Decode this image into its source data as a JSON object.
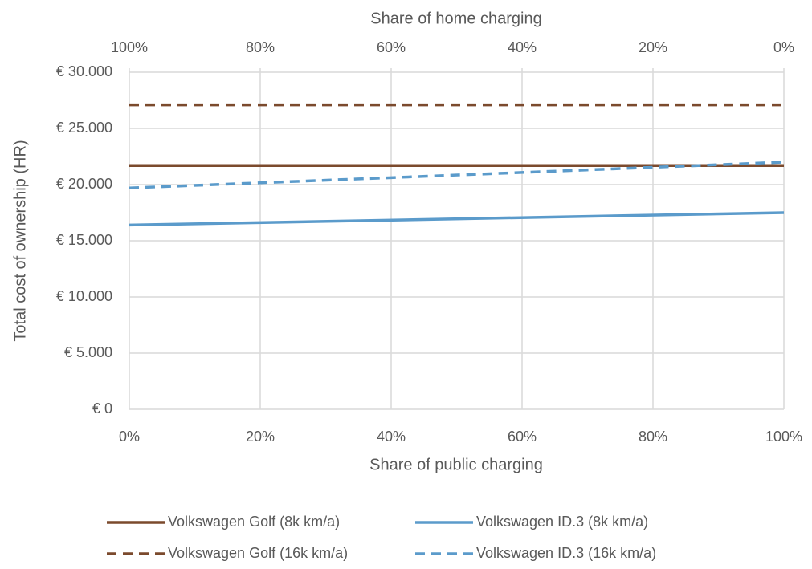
{
  "chart_data": {
    "type": "line",
    "xlabel": "Share of public charging",
    "x2label": "Share of home charging",
    "ylabel": "Total cost of ownership (HR)",
    "x": [
      0,
      100
    ],
    "xlim": [
      0,
      100
    ],
    "xticks": [
      {
        "value": 0,
        "label": "0%"
      },
      {
        "value": 20,
        "label": "20%"
      },
      {
        "value": 40,
        "label": "40%"
      },
      {
        "value": 60,
        "label": "60%"
      },
      {
        "value": 80,
        "label": "80%"
      },
      {
        "value": 100,
        "label": "100%"
      }
    ],
    "x2lim": [
      100,
      0
    ],
    "x2ticks": [
      {
        "value": 100,
        "label": "100%"
      },
      {
        "value": 80,
        "label": "80%"
      },
      {
        "value": 60,
        "label": "60%"
      },
      {
        "value": 40,
        "label": "40%"
      },
      {
        "value": 20,
        "label": "20%"
      },
      {
        "value": 0,
        "label": "0%"
      }
    ],
    "ylim": [
      0,
      30000
    ],
    "yticks": [
      {
        "value": 0,
        "label": "€ 0"
      },
      {
        "value": 5000,
        "label": "€ 5.000"
      },
      {
        "value": 10000,
        "label": "€ 10.000"
      },
      {
        "value": 15000,
        "label": "€ 15.000"
      },
      {
        "value": 20000,
        "label": "€ 20.000"
      },
      {
        "value": 25000,
        "label": "€ 25.000"
      },
      {
        "value": 30000,
        "label": "€ 30.000"
      }
    ],
    "grid": true,
    "legend": "bottom",
    "series": [
      {
        "name": "Volkswagen Golf (8k km/a)",
        "color": "#7b4a2d",
        "dashed": false,
        "values": [
          21700,
          21700
        ]
      },
      {
        "name": "Volkswagen ID.3 (8k km/a)",
        "color": "#5b9bcb",
        "dashed": false,
        "values": [
          16400,
          17500
        ]
      },
      {
        "name": "Volkswagen Golf (16k km/a)",
        "color": "#7b4a2d",
        "dashed": true,
        "values": [
          27100,
          27100
        ]
      },
      {
        "name": "Volkswagen ID.3 (16k km/a)",
        "color": "#5b9bcb",
        "dashed": true,
        "values": [
          19700,
          22000
        ]
      }
    ]
  }
}
